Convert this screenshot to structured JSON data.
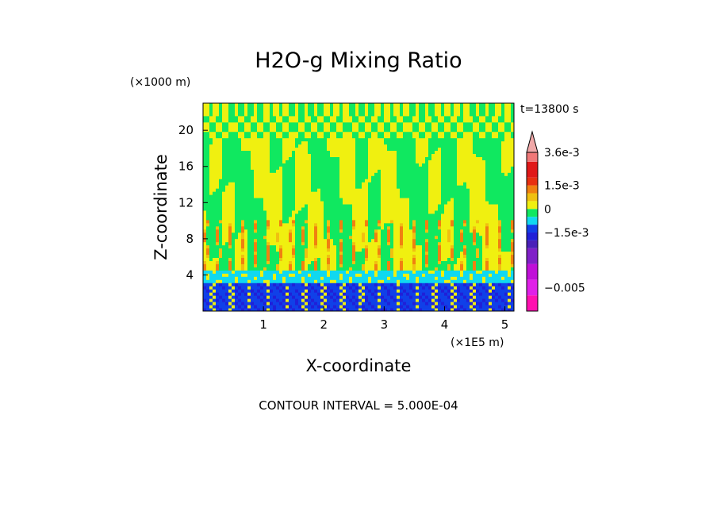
{
  "chart_data": {
    "type": "heatmap",
    "title": "H2O-g Mixing Ratio",
    "xlabel": "X-coordinate",
    "ylabel": "Z-coordinate",
    "x_unit": "(×1E5 m)",
    "y_unit": "(×1000 m)",
    "time_label": "t=13800 s",
    "contour_interval_label": "CONTOUR INTERVAL = 5.000E-04",
    "xlim": [
      0,
      5.15
    ],
    "ylim": [
      0,
      23
    ],
    "x_ticks": [
      1,
      2,
      3,
      4,
      5
    ],
    "y_ticks": [
      4,
      8,
      12,
      16,
      20
    ],
    "x_tick_labels": [
      "1",
      "2",
      "3",
      "4",
      "5"
    ],
    "y_tick_labels": [
      "4",
      "8",
      "12",
      "16",
      "20"
    ],
    "colorbar": {
      "levels": [
        {
          "from": -0.0065,
          "to": -0.0055,
          "color": "#ff10b0"
        },
        {
          "from": -0.0055,
          "to": -0.0045,
          "color": "#e020e8"
        },
        {
          "from": -0.0045,
          "to": -0.0035,
          "color": "#c010d8"
        },
        {
          "from": -0.0035,
          "to": -0.0025,
          "color": "#8020c8"
        },
        {
          "from": -0.0025,
          "to": -0.002,
          "color": "#4a20b8"
        },
        {
          "from": -0.002,
          "to": -0.0015,
          "color": "#2020d8"
        },
        {
          "from": -0.0015,
          "to": -0.001,
          "color": "#1040e8"
        },
        {
          "from": -0.001,
          "to": -0.0005,
          "color": "#10d8f0"
        },
        {
          "from": -0.0005,
          "to": 0.0,
          "color": "#10e860"
        },
        {
          "from": 0.0,
          "to": 0.0005,
          "color": "#f0f010"
        },
        {
          "from": 0.0005,
          "to": 0.001,
          "color": "#f0c010"
        },
        {
          "from": 0.001,
          "to": 0.0015,
          "color": "#f08010"
        },
        {
          "from": 0.0015,
          "to": 0.002,
          "color": "#e83010"
        },
        {
          "from": 0.002,
          "to": 0.003,
          "color": "#e01818"
        },
        {
          "from": 0.003,
          "to": 0.0036,
          "color": "#f07878"
        }
      ],
      "overflow_color": "#f0a8a8",
      "labels": [
        {
          "value": 0.0036,
          "text": "3.6e-3"
        },
        {
          "value": 0.0015,
          "text": "1.5e-3"
        },
        {
          "value": 0.0,
          "text": "0"
        },
        {
          "value": -0.0015,
          "text": "−1.5e-3"
        },
        {
          "value": -0.005,
          "text": "−0.005"
        }
      ]
    }
  }
}
